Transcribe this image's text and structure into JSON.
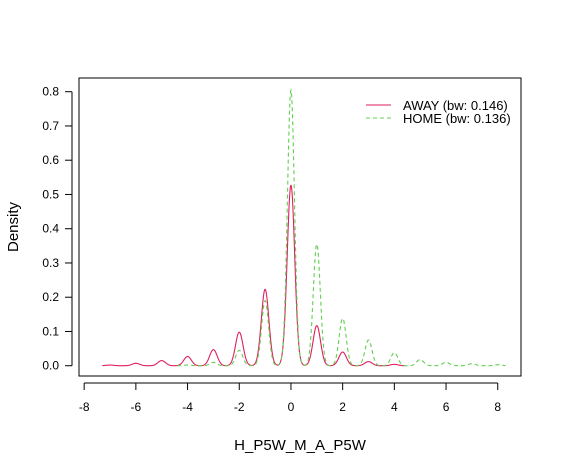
{
  "chart_data": {
    "type": "line",
    "title": "",
    "xlabel": "H_P5W_M_A_P5W",
    "ylabel": "Density",
    "xlim": [
      -8.2,
      8.9
    ],
    "ylim": [
      -0.03,
      0.84
    ],
    "x_ticks": [
      -8,
      -6,
      -4,
      -2,
      0,
      2,
      4,
      6,
      8
    ],
    "y_ticks": [
      0.0,
      0.1,
      0.2,
      0.3,
      0.4,
      0.5,
      0.6,
      0.7,
      0.8
    ],
    "y_tick_labels": [
      "0.0",
      "0.1",
      "0.2",
      "0.3",
      "0.4",
      "0.5",
      "0.6",
      "0.7",
      "0.8"
    ],
    "grid": false,
    "legend_position": "top-right",
    "series": [
      {
        "name": "AWAY (bw: 0.146)",
        "color": "#DF1F5E",
        "dash": "solid",
        "bandwidth": 0.146,
        "x_range": [
          -7.3,
          4.4
        ],
        "peaks": [
          {
            "x": -7,
            "y": 0.002
          },
          {
            "x": -6,
            "y": 0.007
          },
          {
            "x": -5,
            "y": 0.015
          },
          {
            "x": -4,
            "y": 0.027
          },
          {
            "x": -3,
            "y": 0.047
          },
          {
            "x": -2,
            "y": 0.098
          },
          {
            "x": -1,
            "y": 0.223
          },
          {
            "x": 0,
            "y": 0.527
          },
          {
            "x": 1,
            "y": 0.117
          },
          {
            "x": 2,
            "y": 0.04
          },
          {
            "x": 3,
            "y": 0.012
          },
          {
            "x": 4,
            "y": 0.004
          }
        ]
      },
      {
        "name": "HOME (bw: 0.136)",
        "color": "#61D04F",
        "dash": "dashed",
        "bandwidth": 0.136,
        "x_range": [
          -4.4,
          8.3
        ],
        "peaks": [
          {
            "x": -4,
            "y": 0.002
          },
          {
            "x": -3,
            "y": 0.01
          },
          {
            "x": -2,
            "y": 0.045
          },
          {
            "x": -1,
            "y": 0.19
          },
          {
            "x": 0,
            "y": 0.805
          },
          {
            "x": 1,
            "y": 0.355
          },
          {
            "x": 2,
            "y": 0.138
          },
          {
            "x": 3,
            "y": 0.075
          },
          {
            "x": 4,
            "y": 0.038
          },
          {
            "x": 5,
            "y": 0.018
          },
          {
            "x": 6,
            "y": 0.01
          },
          {
            "x": 7,
            "y": 0.006
          },
          {
            "x": 8,
            "y": 0.003
          }
        ]
      }
    ]
  }
}
